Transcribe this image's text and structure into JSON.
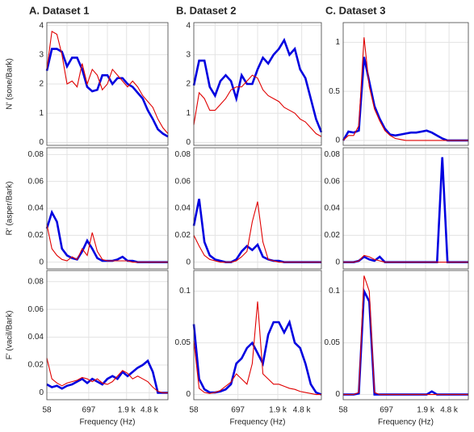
{
  "chart_data": [
    {
      "type": "line",
      "title": "A. Dataset 1",
      "ylabel": "N' (sone/Bark)",
      "x": [
        0,
        1,
        2,
        3,
        4,
        5,
        6,
        7,
        8,
        9,
        10,
        11,
        12,
        13,
        14,
        15,
        16,
        17,
        18,
        19,
        20,
        21,
        22,
        23,
        24
      ],
      "xlim": [
        0,
        24
      ],
      "xticks": [
        0,
        4,
        8.3,
        12,
        15.8,
        20.3,
        24
      ],
      "ylim": [
        -0.1,
        4.1
      ],
      "yticks": [
        0,
        1,
        2,
        3,
        4
      ],
      "grid": true,
      "series": [
        {
          "color": "#0000e0",
          "values": [
            2.45,
            3.2,
            3.2,
            3.1,
            2.6,
            2.9,
            2.9,
            2.5,
            1.9,
            1.75,
            1.8,
            2.3,
            2.3,
            2.0,
            2.2,
            2.2,
            2.0,
            1.9,
            1.7,
            1.5,
            1.1,
            0.8,
            0.45,
            0.3,
            0.2
          ]
        },
        {
          "color": "#e00000",
          "values": [
            2.5,
            3.8,
            3.7,
            3.0,
            2.0,
            2.1,
            1.9,
            2.7,
            2.0,
            2.5,
            2.3,
            1.8,
            2.0,
            2.5,
            2.3,
            2.1,
            1.9,
            2.1,
            1.9,
            1.6,
            1.4,
            1.2,
            0.8,
            0.5,
            0.3
          ]
        }
      ]
    },
    {
      "type": "line",
      "title": "B. Dataset 2",
      "x": [
        0,
        1,
        2,
        3,
        4,
        5,
        6,
        7,
        8,
        9,
        10,
        11,
        12,
        13,
        14,
        15,
        16,
        17,
        18,
        19,
        20,
        21,
        22,
        23,
        24
      ],
      "xlim": [
        0,
        24
      ],
      "xticks": [
        0,
        4,
        8.3,
        12,
        15.8,
        20.3,
        24
      ],
      "ylim": [
        -0.1,
        4.1
      ],
      "yticks": [
        0,
        1,
        2,
        3,
        4
      ],
      "grid": true,
      "series": [
        {
          "color": "#0000e0",
          "values": [
            1.95,
            2.8,
            2.8,
            1.9,
            1.6,
            2.1,
            2.3,
            2.1,
            1.5,
            2.3,
            2.0,
            2.0,
            2.5,
            2.9,
            2.7,
            3.0,
            3.2,
            3.5,
            3.0,
            3.2,
            2.5,
            2.2,
            1.5,
            0.8,
            0.35
          ]
        },
        {
          "color": "#e00000",
          "values": [
            0.6,
            1.7,
            1.5,
            1.1,
            1.1,
            1.3,
            1.5,
            1.8,
            1.9,
            1.9,
            2.1,
            2.3,
            2.2,
            1.8,
            1.6,
            1.5,
            1.4,
            1.2,
            1.1,
            1.0,
            0.8,
            0.7,
            0.5,
            0.3,
            0.2
          ]
        }
      ]
    },
    {
      "type": "line",
      "title": "C. Dataset 3",
      "x": [
        0,
        1,
        2,
        3,
        4,
        5,
        6,
        7,
        8,
        9,
        10,
        11,
        12,
        13,
        14,
        15,
        16,
        17,
        18,
        19,
        20,
        21,
        22,
        23,
        24
      ],
      "xlim": [
        0,
        24
      ],
      "xticks": [
        0,
        4,
        8.3,
        12,
        15.8,
        20.3,
        24
      ],
      "ylim": [
        -0.05,
        1.2
      ],
      "yticks": [
        0,
        0.5,
        1
      ],
      "grid": true,
      "series": [
        {
          "color": "#0000e0",
          "values": [
            0,
            0.09,
            0.08,
            0.1,
            0.85,
            0.6,
            0.35,
            0.22,
            0.12,
            0.06,
            0.05,
            0.06,
            0.07,
            0.08,
            0.08,
            0.09,
            0.1,
            0.08,
            0.05,
            0.02,
            0,
            0,
            0,
            0,
            0
          ]
        },
        {
          "color": "#e00000",
          "values": [
            0,
            0.05,
            0.05,
            0.15,
            1.05,
            0.55,
            0.32,
            0.2,
            0.1,
            0.05,
            0.02,
            0.01,
            0,
            0,
            0,
            0,
            0,
            0,
            0,
            0,
            0,
            0,
            0,
            0,
            0
          ]
        }
      ]
    },
    {
      "type": "line",
      "ylabel": "R' (asper/Bark)",
      "x": [
        0,
        1,
        2,
        3,
        4,
        5,
        6,
        7,
        8,
        9,
        10,
        11,
        12,
        13,
        14,
        15,
        16,
        17,
        18,
        19,
        20,
        21,
        22,
        23,
        24
      ],
      "xlim": [
        0,
        24
      ],
      "xticks": [
        0,
        4,
        8.3,
        12,
        15.8,
        20.3,
        24
      ],
      "ylim": [
        -0.005,
        0.085
      ],
      "yticks": [
        0,
        0.02,
        0.04,
        0.06,
        0.08
      ],
      "grid": true,
      "series": [
        {
          "color": "#0000e0",
          "values": [
            0.025,
            0.037,
            0.03,
            0.01,
            0.005,
            0.003,
            0.002,
            0.008,
            0.016,
            0.01,
            0.003,
            0.001,
            0.001,
            0.001,
            0.002,
            0.004,
            0.001,
            0.001,
            0,
            0,
            0,
            0,
            0,
            0,
            0
          ]
        },
        {
          "color": "#e00000",
          "values": [
            0.028,
            0.01,
            0.005,
            0.002,
            0.001,
            0.004,
            0.002,
            0.01,
            0.005,
            0.022,
            0.008,
            0.002,
            0.001,
            0.001,
            0.001,
            0.001,
            0.001,
            0,
            0,
            0,
            0,
            0,
            0,
            0,
            0
          ]
        }
      ]
    },
    {
      "type": "line",
      "x": [
        0,
        1,
        2,
        3,
        4,
        5,
        6,
        7,
        8,
        9,
        10,
        11,
        12,
        13,
        14,
        15,
        16,
        17,
        18,
        19,
        20,
        21,
        22,
        23,
        24
      ],
      "xlim": [
        0,
        24
      ],
      "xticks": [
        0,
        4,
        8.3,
        12,
        15.8,
        20.3,
        24
      ],
      "ylim": [
        -0.005,
        0.085
      ],
      "yticks": [
        0,
        0.02,
        0.04,
        0.06,
        0.08
      ],
      "grid": true,
      "series": [
        {
          "color": "#0000e0",
          "values": [
            0.027,
            0.047,
            0.015,
            0.005,
            0.002,
            0.001,
            0,
            0,
            0.002,
            0.008,
            0.012,
            0.009,
            0.013,
            0.004,
            0.002,
            0.001,
            0.001,
            0,
            0,
            0,
            0,
            0,
            0,
            0,
            0
          ]
        },
        {
          "color": "#e00000",
          "values": [
            0.02,
            0.012,
            0.005,
            0.002,
            0.001,
            0,
            0,
            0,
            0.001,
            0.004,
            0.008,
            0.03,
            0.045,
            0.015,
            0.002,
            0.001,
            0,
            0,
            0,
            0,
            0,
            0,
            0,
            0,
            0
          ]
        }
      ]
    },
    {
      "type": "line",
      "x": [
        0,
        1,
        2,
        3,
        4,
        5,
        6,
        7,
        8,
        9,
        10,
        11,
        12,
        13,
        14,
        15,
        16,
        17,
        18,
        19,
        20,
        21,
        22,
        23,
        24
      ],
      "xlim": [
        0,
        24
      ],
      "xticks": [
        0,
        4,
        8.3,
        12,
        15.8,
        20.3,
        24
      ],
      "ylim": [
        -0.005,
        0.085
      ],
      "yticks": [
        0,
        0.02,
        0.04,
        0.06,
        0.08
      ],
      "grid": true,
      "series": [
        {
          "color": "#0000e0",
          "values": [
            0,
            0,
            0,
            0.001,
            0.004,
            0.002,
            0.001,
            0.004,
            0,
            0,
            0,
            0,
            0,
            0,
            0,
            0,
            0,
            0,
            0,
            0.078,
            0,
            0,
            0,
            0,
            0
          ]
        },
        {
          "color": "#e00000",
          "values": [
            0,
            0,
            0,
            0.001,
            0.005,
            0.004,
            0.002,
            0.001,
            0,
            0,
            0,
            0,
            0,
            0,
            0,
            0,
            0,
            0,
            0,
            0,
            0,
            0,
            0,
            0,
            0
          ]
        }
      ]
    },
    {
      "type": "line",
      "ylabel": "F' (vacil/Bark)",
      "xlabel": "Frequency (Hz)",
      "x": [
        0,
        1,
        2,
        3,
        4,
        5,
        6,
        7,
        8,
        9,
        10,
        11,
        12,
        13,
        14,
        15,
        16,
        17,
        18,
        19,
        20,
        21,
        22,
        23,
        24
      ],
      "xlim": [
        0,
        24
      ],
      "xticks": [
        {
          "value": 0,
          "label": "58"
        },
        {
          "value": 8.3,
          "label": "697"
        },
        {
          "value": 15.8,
          "label": "1.9 k"
        },
        {
          "value": 20.3,
          "label": "4.8 k"
        }
      ],
      "ylim": [
        -0.005,
        0.088
      ],
      "yticks": [
        0,
        0.02,
        0.04,
        0.06,
        0.08
      ],
      "grid": true,
      "series": [
        {
          "color": "#0000e0",
          "values": [
            0.006,
            0.004,
            0.005,
            0.003,
            0.005,
            0.006,
            0.008,
            0.01,
            0.007,
            0.01,
            0.008,
            0.006,
            0.01,
            0.012,
            0.01,
            0.015,
            0.012,
            0.015,
            0.018,
            0.02,
            0.023,
            0.015,
            0,
            0,
            0
          ]
        },
        {
          "color": "#e00000",
          "values": [
            0.025,
            0.01,
            0.007,
            0.005,
            0.007,
            0.008,
            0.009,
            0.011,
            0.01,
            0.008,
            0.01,
            0.007,
            0.006,
            0.008,
            0.012,
            0.016,
            0.014,
            0.01,
            0.012,
            0.01,
            0.008,
            0.004,
            0.001,
            0,
            0
          ]
        }
      ]
    },
    {
      "type": "line",
      "xlabel": "Frequency (Hz)",
      "x": [
        0,
        1,
        2,
        3,
        4,
        5,
        6,
        7,
        8,
        9,
        10,
        11,
        12,
        13,
        14,
        15,
        16,
        17,
        18,
        19,
        20,
        21,
        22,
        23,
        24
      ],
      "xlim": [
        0,
        24
      ],
      "xticks": [
        {
          "value": 0,
          "label": "58"
        },
        {
          "value": 8.3,
          "label": "697"
        },
        {
          "value": 15.8,
          "label": "1.9 k"
        },
        {
          "value": 20.3,
          "label": "4.8 k"
        }
      ],
      "ylim": [
        -0.005,
        0.12
      ],
      "yticks": [
        0,
        0.05,
        0.1
      ],
      "grid": true,
      "series": [
        {
          "color": "#0000e0",
          "values": [
            0.068,
            0.015,
            0.005,
            0.002,
            0.002,
            0.003,
            0.005,
            0.01,
            0.03,
            0.035,
            0.045,
            0.05,
            0.04,
            0.03,
            0.058,
            0.07,
            0.07,
            0.06,
            0.07,
            0.05,
            0.045,
            0.03,
            0.01,
            0.002,
            0
          ]
        },
        {
          "color": "#e00000",
          "values": [
            0.052,
            0.006,
            0.002,
            0.001,
            0.002,
            0.004,
            0.008,
            0.012,
            0.02,
            0.015,
            0.01,
            0.03,
            0.09,
            0.02,
            0.015,
            0.01,
            0.01,
            0.008,
            0.006,
            0.005,
            0.003,
            0.002,
            0.001,
            0,
            0
          ]
        }
      ]
    },
    {
      "type": "line",
      "xlabel": "Frequency (Hz)",
      "x": [
        0,
        1,
        2,
        3,
        4,
        5,
        6,
        7,
        8,
        9,
        10,
        11,
        12,
        13,
        14,
        15,
        16,
        17,
        18,
        19,
        20,
        21,
        22,
        23,
        24
      ],
      "xlim": [
        0,
        24
      ],
      "xticks": [
        {
          "value": 0,
          "label": "58"
        },
        {
          "value": 8.3,
          "label": "697"
        },
        {
          "value": 15.8,
          "label": "1.9 k"
        },
        {
          "value": 20.3,
          "label": "4.8 k"
        }
      ],
      "ylim": [
        -0.005,
        0.12
      ],
      "yticks": [
        0,
        0.05,
        0.1
      ],
      "grid": true,
      "series": [
        {
          "color": "#0000e0",
          "values": [
            0,
            0,
            0,
            0.001,
            0.1,
            0.09,
            0,
            0,
            0,
            0,
            0,
            0,
            0,
            0,
            0,
            0,
            0,
            0.003,
            0,
            0,
            0,
            0,
            0,
            0,
            0
          ]
        },
        {
          "color": "#e00000",
          "values": [
            0,
            0,
            0,
            0.002,
            0.115,
            0.1,
            0.002,
            0,
            0,
            0,
            0,
            0,
            0,
            0,
            0,
            0,
            0,
            0,
            0,
            0,
            0,
            0,
            0,
            0,
            0
          ]
        }
      ]
    }
  ]
}
